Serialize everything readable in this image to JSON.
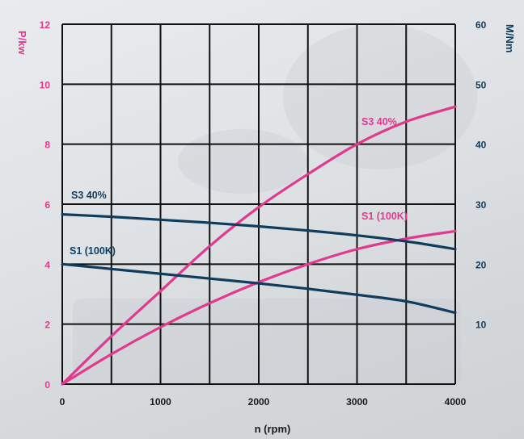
{
  "colors": {
    "power": "#e03a8e",
    "torque": "#0f3d5e",
    "grid": "#111111",
    "text_dark": "#0f3d5e"
  },
  "chart_data": {
    "type": "line",
    "xlabel": "n (rpm)",
    "ylabel_left": "P/kw",
    "ylabel_right": "M/Nm",
    "xlim": [
      0,
      4000
    ],
    "ylim_left": [
      0,
      12
    ],
    "ylim_right": [
      0,
      60
    ],
    "x_ticks": [
      0,
      1000,
      2000,
      3000,
      4000
    ],
    "y_left_ticks": [
      0,
      2,
      4,
      6,
      8,
      10,
      12
    ],
    "y_right_ticks": [
      10,
      20,
      30,
      40,
      50,
      60
    ],
    "grid": true,
    "series": [
      {
        "name": "S3 40%",
        "axis": "left",
        "color_key": "power",
        "x": [
          0,
          500,
          1000,
          1500,
          2000,
          2500,
          3000,
          3500,
          4000
        ],
        "values": [
          0,
          1.6,
          3.1,
          4.6,
          5.9,
          7.0,
          8.0,
          8.75,
          9.25
        ]
      },
      {
        "name": "S1 (100K)",
        "axis": "left",
        "color_key": "power",
        "x": [
          0,
          500,
          1000,
          1500,
          2000,
          2500,
          3000,
          3500,
          4000
        ],
        "values": [
          0,
          1.0,
          1.9,
          2.7,
          3.4,
          4.0,
          4.5,
          4.85,
          5.1
        ]
      },
      {
        "name": "S3 40%",
        "axis": "right",
        "color_key": "torque",
        "x": [
          0,
          500,
          1000,
          1500,
          2000,
          2500,
          3000,
          3500,
          4000
        ],
        "values": [
          28.3,
          27.9,
          27.4,
          26.9,
          26.3,
          25.6,
          24.8,
          23.8,
          22.5
        ]
      },
      {
        "name": "S1 (100K)",
        "axis": "right",
        "color_key": "torque",
        "x": [
          0,
          500,
          1000,
          1500,
          2000,
          2500,
          3000,
          3500,
          4000
        ],
        "values": [
          20.0,
          19.2,
          18.4,
          17.6,
          16.8,
          15.9,
          14.9,
          13.8,
          11.9
        ]
      }
    ]
  }
}
